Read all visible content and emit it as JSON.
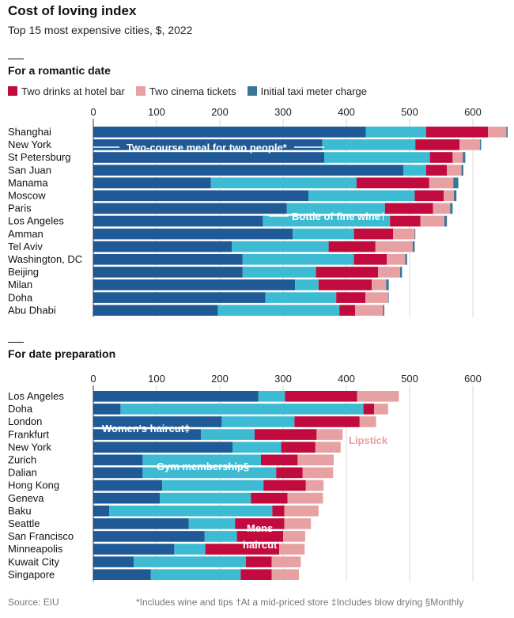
{
  "title": "Cost of loving index",
  "subtitle": "Top 15 most expensive cities, $, 2022",
  "source": "Source: EIU",
  "footnote": "*Includes wine and tips †At a mid-priced store ‡Includes blow drying §Monthly",
  "colors": {
    "dark_blue": "#1f5a96",
    "cyan": "#3dbbd3",
    "crimson": "#c10a3e",
    "pink": "#e8a1a3",
    "teal": "#3a7796"
  },
  "chart_data": [
    {
      "type": "bar",
      "orientation": "horizontal",
      "stacked": true,
      "title": "For a romantic date",
      "xlim": [
        0,
        650
      ],
      "xticks": [
        "0",
        "100",
        "200",
        "300",
        "400",
        "500",
        "600"
      ],
      "grid": true,
      "legend_placement": "top",
      "categories": [
        "Shanghai",
        "New York",
        "St Petersburg",
        "San Juan",
        "Manama",
        "Moscow",
        "Paris",
        "Los Angeles",
        "Amman",
        "Tel Aviv",
        "Washington, DC",
        "Beijing",
        "Milan",
        "Doha",
        "Abu Dhabi"
      ],
      "series": [
        {
          "name": "Two-course meal for two people*",
          "color": "#1f5a96",
          "legend": false,
          "values": [
            431,
            362,
            365,
            490,
            186,
            340,
            306,
            268,
            315,
            219,
            236,
            236,
            319,
            272,
            197
          ]
        },
        {
          "name": "Bottle of fine wine†",
          "color": "#3dbbd3",
          "legend": false,
          "values": [
            95,
            147,
            167,
            36,
            230,
            168,
            155,
            201,
            97,
            153,
            176,
            116,
            37,
            112,
            192
          ]
        },
        {
          "name": "Two drinks at hotel bar",
          "color": "#c10a3e",
          "legend": true,
          "values": [
            98,
            70,
            36,
            33,
            115,
            46,
            76,
            48,
            62,
            74,
            52,
            98,
            84,
            46,
            25
          ]
        },
        {
          "name": "Two cinema tickets",
          "color": "#e8a1a3",
          "legend": true,
          "values": [
            29,
            32,
            16,
            23,
            38,
            16,
            27,
            38,
            34,
            59,
            29,
            35,
            23,
            36,
            44
          ]
        },
        {
          "name": "Initial taxi meter charge",
          "color": "#3a7796",
          "legend": true,
          "values": [
            2,
            2,
            4,
            3,
            8,
            4,
            4,
            4,
            1,
            3,
            3,
            3,
            4,
            1,
            2
          ]
        }
      ]
    },
    {
      "type": "bar",
      "orientation": "horizontal",
      "stacked": true,
      "title": "For date preparation",
      "xlim": [
        0,
        650
      ],
      "xticks": [
        "0",
        "100",
        "200",
        "300",
        "400",
        "500",
        "600"
      ],
      "grid": true,
      "categories": [
        "Los Angeles",
        "Doha",
        "London",
        "Frankfurt",
        "New York",
        "Zurich",
        "Dalian",
        "Hong Kong",
        "Geneva",
        "Baku",
        "Seattle",
        "San Francisco",
        "Minneapolis",
        "Kuwait City",
        "Singapore"
      ],
      "series": [
        {
          "name": "Women's haircut‡",
          "color": "#1f5a96",
          "values": [
            261,
            43,
            203,
            170,
            220,
            78,
            78,
            109,
            105,
            25,
            151,
            176,
            128,
            64,
            91
          ]
        },
        {
          "name": "Gym membership§",
          "color": "#3dbbd3",
          "values": [
            42,
            384,
            115,
            85,
            77,
            187,
            211,
            160,
            144,
            258,
            73,
            51,
            49,
            177,
            142
          ]
        },
        {
          "name": "Mens haircut",
          "color": "#c10a3e",
          "values": [
            114,
            17,
            103,
            98,
            54,
            58,
            42,
            67,
            58,
            19,
            78,
            73,
            117,
            41,
            49
          ]
        },
        {
          "name": "Lipstick",
          "color": "#e8a1a3",
          "values": [
            66,
            22,
            26,
            41,
            40,
            57,
            48,
            28,
            56,
            54,
            42,
            35,
            40,
            46,
            43
          ]
        }
      ]
    }
  ]
}
